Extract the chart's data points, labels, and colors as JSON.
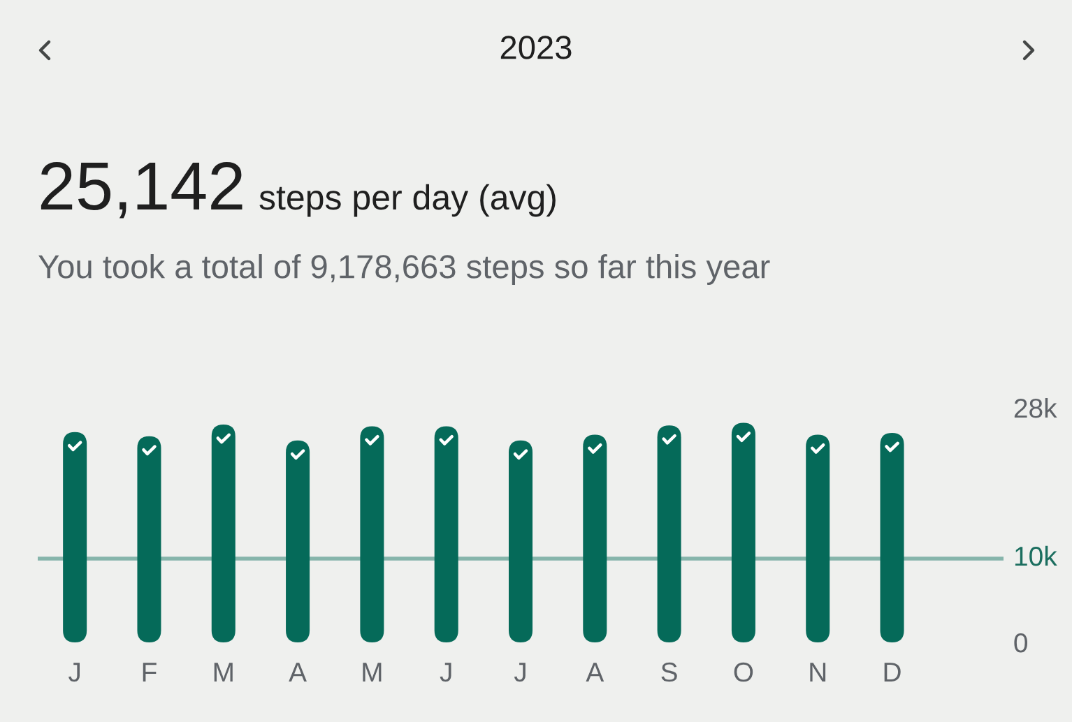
{
  "chart_data": {
    "type": "bar",
    "title": "2023",
    "subtitle": "You took a total of 9,178,663 steps so far this year",
    "annotations": [
      "25,142",
      "steps per day (avg)"
    ],
    "categories": [
      "J",
      "F",
      "M",
      "A",
      "M",
      "J",
      "J",
      "A",
      "S",
      "O",
      "N",
      "D"
    ],
    "values": [
      25100,
      24600,
      26000,
      24100,
      25800,
      25800,
      24100,
      24800,
      25900,
      26200,
      24800,
      25000
    ],
    "color": "#056a59",
    "ylim": [
      0,
      28000
    ],
    "yticks": [
      0,
      {
        "value": 28000,
        "label": "28k"
      }
    ],
    "ref_lines": [
      {
        "axis": "y",
        "value": 10000,
        "label": "10k",
        "color": "#86b5ab"
      }
    ]
  }
}
